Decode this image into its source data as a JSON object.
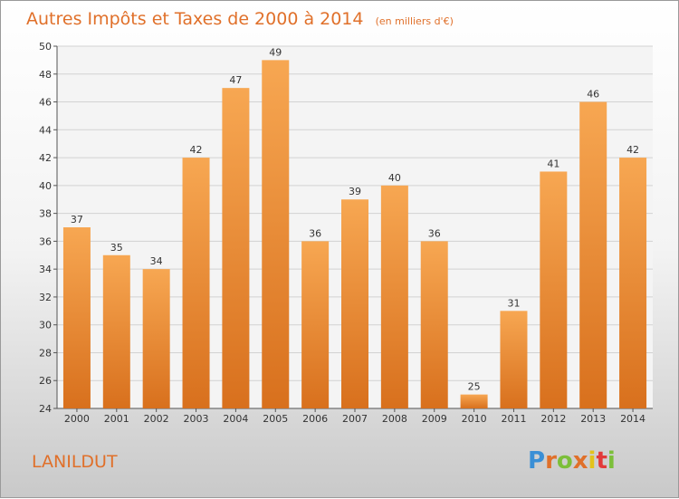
{
  "chart_data": {
    "type": "bar",
    "title": "Autres Impôts et Taxes de 2000 à 2014",
    "subtitle": "(en milliers d'€)",
    "categories": [
      "2000",
      "2001",
      "2002",
      "2003",
      "2004",
      "2005",
      "2006",
      "2007",
      "2008",
      "2009",
      "2010",
      "2011",
      "2012",
      "2013",
      "2014"
    ],
    "values": [
      37,
      35,
      34,
      42,
      47,
      49,
      36,
      39,
      40,
      36,
      25,
      31,
      41,
      46,
      42
    ],
    "ylim": [
      24,
      50
    ],
    "yticks": [
      24,
      26,
      28,
      30,
      32,
      34,
      36,
      38,
      40,
      42,
      44,
      46,
      48,
      50
    ],
    "grid": true,
    "bar_color": "#f29a45"
  },
  "commune": "LANILDUT",
  "logo": {
    "letters": [
      "P",
      "r",
      "o",
      "x",
      "i",
      "t",
      "i"
    ],
    "colors": [
      "#3a8fd6",
      "#e0702a",
      "#7cbf3a",
      "#e0702a",
      "#e3c21b",
      "#e23a3a",
      "#7cbf3a"
    ]
  }
}
